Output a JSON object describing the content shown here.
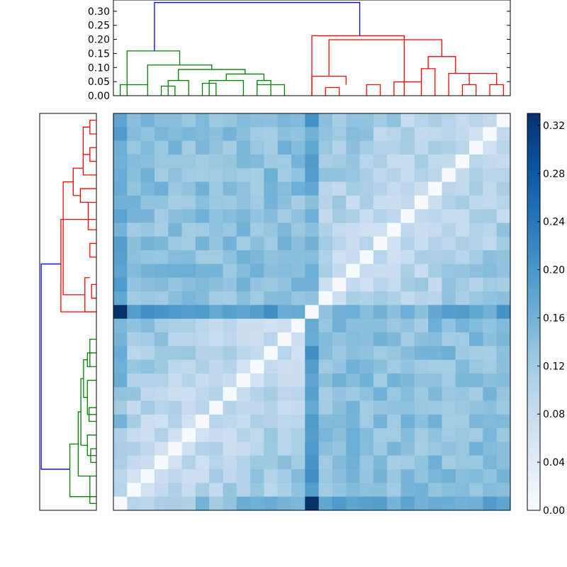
{
  "chart_data": [
    {
      "type": "dendrogram",
      "orientation": "top",
      "ylim": [
        0,
        0.34
      ],
      "yticks": [
        "0.00",
        "0.05",
        "0.10",
        "0.15",
        "0.20",
        "0.25",
        "0.30"
      ],
      "ytick_values": [
        0,
        0.05,
        0.1,
        0.15,
        0.2,
        0.25,
        0.3
      ],
      "leaf_count": 29,
      "links": [
        {
          "c": "green",
          "x": [
            0.0,
            0.0,
            2.0,
            2.0
          ],
          "y": [
            0.0,
            0.039,
            0.039,
            0.0
          ]
        },
        {
          "c": "green",
          "x": [
            3.0,
            3.0,
            4.0,
            4.0
          ],
          "y": [
            0.0,
            0.034,
            0.034,
            0.0
          ]
        },
        {
          "c": "green",
          "x": [
            3.5,
            3.5,
            5.0,
            5.0
          ],
          "y": [
            0.0,
            0.054,
            0.054,
            0.0
          ]
        },
        {
          "c": "green",
          "x": [
            6.0,
            6.0,
            7.0,
            7.0
          ],
          "y": [
            0.0,
            0.044,
            0.044,
            0.0
          ]
        },
        {
          "c": "green",
          "x": [
            6.5,
            6.5,
            9.0,
            9.0
          ],
          "y": [
            0.0,
            0.054,
            0.054,
            0.0
          ]
        },
        {
          "c": "green",
          "x": [
            10.0,
            10.0,
            12.0,
            12.0
          ],
          "y": [
            0.0,
            0.039,
            0.039,
            0.0
          ]
        },
        {
          "c": "green",
          "x": [
            10.0,
            10.0,
            11.0,
            11.0
          ],
          "y": [
            0.039,
            0.054,
            0.054,
            0.0
          ]
        },
        {
          "c": "green",
          "x": [
            7.75,
            7.75,
            10.5,
            10.5
          ],
          "y": [
            0.054,
            0.077,
            0.077,
            0.054
          ]
        },
        {
          "c": "green",
          "x": [
            4.25,
            4.25,
            9.125,
            9.125
          ],
          "y": [
            0.054,
            0.093,
            0.093,
            0.077
          ]
        },
        {
          "c": "green",
          "x": [
            2.0,
            2.0,
            6.6875,
            6.6875
          ],
          "y": [
            0.039,
            0.109,
            0.109,
            0.093
          ]
        },
        {
          "c": "green",
          "x": [
            0.5,
            0.5,
            4.34375,
            4.34375
          ],
          "y": [
            0.0,
            0.159,
            0.159,
            0.109
          ]
        },
        {
          "c": "red",
          "x": [
            15.0,
            15.0,
            16.0,
            16.0
          ],
          "y": [
            0.0,
            0.029,
            0.029,
            0.0
          ]
        },
        {
          "c": "red",
          "x": [
            18.0,
            18.0,
            19.0,
            19.0
          ],
          "y": [
            0.0,
            0.039,
            0.039,
            0.0
          ]
        },
        {
          "c": "red",
          "x": [
            14.0,
            14.0,
            16.5,
            16.5
          ],
          "y": [
            0.0,
            0.069,
            0.069,
            0.039
          ]
        },
        {
          "c": "red",
          "x": [
            20.0,
            20.0,
            22.0,
            22.0
          ],
          "y": [
            0.0,
            0.049,
            0.049,
            0.0
          ]
        },
        {
          "c": "red",
          "x": [
            22.0,
            22.0,
            23.0,
            23.0
          ],
          "y": [
            0.049,
            0.096,
            0.096,
            0.0
          ]
        },
        {
          "c": "red",
          "x": [
            25.0,
            25.0,
            26.0,
            26.0
          ],
          "y": [
            0.0,
            0.039,
            0.039,
            0.0
          ]
        },
        {
          "c": "red",
          "x": [
            27.0,
            27.0,
            28.0,
            28.0
          ],
          "y": [
            0.0,
            0.039,
            0.039,
            0.0
          ]
        },
        {
          "c": "red",
          "x": [
            24.0,
            24.0,
            25.5,
            25.5
          ],
          "y": [
            0.0,
            0.079,
            0.079,
            0.039
          ]
        },
        {
          "c": "red",
          "x": [
            25.5,
            25.5,
            27.5,
            27.5
          ],
          "y": [
            0.079,
            0.079,
            0.079,
            0.039
          ]
        },
        {
          "c": "red",
          "x": [
            22.5,
            22.5,
            24.5,
            24.5
          ],
          "y": [
            0.096,
            0.139,
            0.139,
            0.079
          ]
        },
        {
          "c": "red",
          "x": [
            15.25,
            15.25,
            23.5,
            23.5
          ],
          "y": [
            0.069,
            0.199,
            0.199,
            0.139
          ]
        },
        {
          "c": "red",
          "x": [
            14.0,
            14.0,
            20.75,
            20.75
          ],
          "y": [
            0.0,
            0.213,
            0.213,
            0.0
          ]
        },
        {
          "c": "blue",
          "x": [
            2.5,
            2.5,
            17.5,
            17.5
          ],
          "y": [
            0.159,
            0.331,
            0.331,
            0.213
          ]
        }
      ]
    },
    {
      "type": "dendrogram",
      "orientation": "left",
      "leaf_count": 29,
      "mirror_of": "top"
    },
    {
      "type": "heatmap",
      "rows": 29,
      "cols": 29,
      "cmap": "Blues",
      "vmin": 0.0,
      "vmax": 0.33,
      "generator": "pairwise distance between features (reconstructed)",
      "colorbar_ticks": [
        "0.00",
        "0.04",
        "0.08",
        "0.12",
        "0.16",
        "0.20",
        "0.24",
        "0.28",
        "0.32"
      ],
      "colorbar_values": [
        0.0,
        0.04,
        0.08,
        0.12,
        0.16,
        0.2,
        0.24,
        0.28,
        0.32
      ]
    }
  ],
  "colors": {
    "green": "#008000",
    "red": "#ff0000",
    "blue": "#0000ff",
    "axis": "#000000"
  }
}
